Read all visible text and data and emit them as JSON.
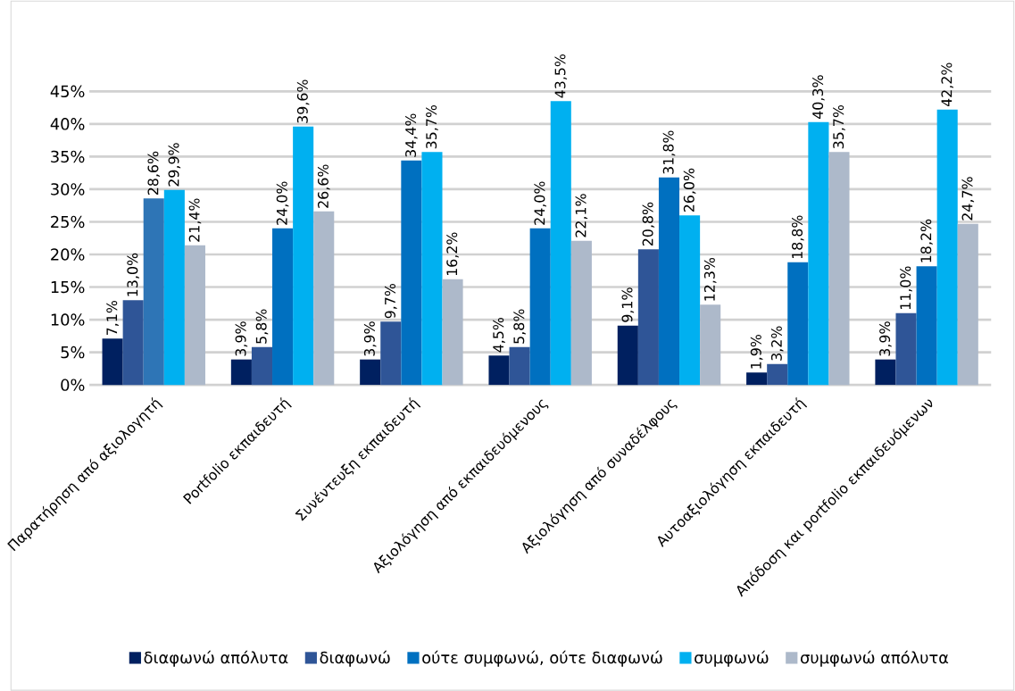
{
  "chart_data": {
    "type": "bar",
    "categories": [
      "Παρατήρηση από αξιολογητή",
      "Portfolio εκπαιδευτή",
      "Συνέντευξη εκπαιδευτή",
      "Αξιολόγηση από εκπαιδευόμενους",
      "Αξιολόγηση από συναδέλφους",
      "Αυτοαξιολόγηση εκπαιδευτή",
      "Απόδοση και portfolio εκπαιδευόμενων"
    ],
    "series": [
      {
        "name": "διαφωνώ απόλυτα",
        "color": "#002060",
        "values": [
          7.1,
          3.9,
          3.9,
          4.5,
          9.1,
          1.9,
          3.9
        ],
        "value_labels": [
          "7,1%",
          "3,9%",
          "3,9%",
          "4,5%",
          "9,1%",
          "1,9%",
          "3,9%"
        ]
      },
      {
        "name": "διαφωνώ",
        "color": "#2f5597",
        "values": [
          13.0,
          5.8,
          9.7,
          5.8,
          20.8,
          3.2,
          11.0
        ],
        "value_labels": [
          "13,0%",
          "5,8%",
          "9,7%",
          "5,8%",
          "20,8%",
          "3,2%",
          "11,0%"
        ]
      },
      {
        "name": "ούτε συμφωνώ, ούτε διαφωνώ",
        "color": "#0070c0",
        "colors": [
          "#2e75b6",
          "#0070c0",
          "#0070c0",
          "#0070c0",
          "#0070c0",
          "#0070c0",
          "#0070c0"
        ],
        "values": [
          28.6,
          24.0,
          34.4,
          24.0,
          31.8,
          18.8,
          18.2
        ],
        "value_labels": [
          "28,6%",
          "24,0%",
          "34,4%",
          "24,0%",
          "31,8%",
          "18,8%",
          "18,2%"
        ]
      },
      {
        "name": "συμφωνώ",
        "color": "#00b0f0",
        "values": [
          29.9,
          39.6,
          35.7,
          43.5,
          26.0,
          40.3,
          42.2
        ],
        "value_labels": [
          "29,9%",
          "39,6%",
          "35,7%",
          "43,5%",
          "26,0%",
          "40,3%",
          "42,2%"
        ]
      },
      {
        "name": "συμφωνώ απόλυτα",
        "color": "#adb9ca",
        "values": [
          21.4,
          26.6,
          16.2,
          22.1,
          12.3,
          35.7,
          24.7
        ],
        "value_labels": [
          "21,4%",
          "26,6%",
          "16,2%",
          "22,1%",
          "12,3%",
          "35,7%",
          "24,7%"
        ]
      }
    ],
    "ylim": [
      0,
      45
    ],
    "yticks": [
      {
        "value": 0,
        "label": "0%"
      },
      {
        "value": 5,
        "label": "5%"
      },
      {
        "value": 10,
        "label": "10%"
      },
      {
        "value": 15,
        "label": "15%"
      },
      {
        "value": 20,
        "label": "20%"
      },
      {
        "value": 25,
        "label": "25%"
      },
      {
        "value": 30,
        "label": "30%"
      },
      {
        "value": 35,
        "label": "35%"
      },
      {
        "value": 40,
        "label": "40%"
      },
      {
        "value": 45,
        "label": "45%"
      }
    ],
    "grid": "y",
    "legend": "bottom"
  }
}
